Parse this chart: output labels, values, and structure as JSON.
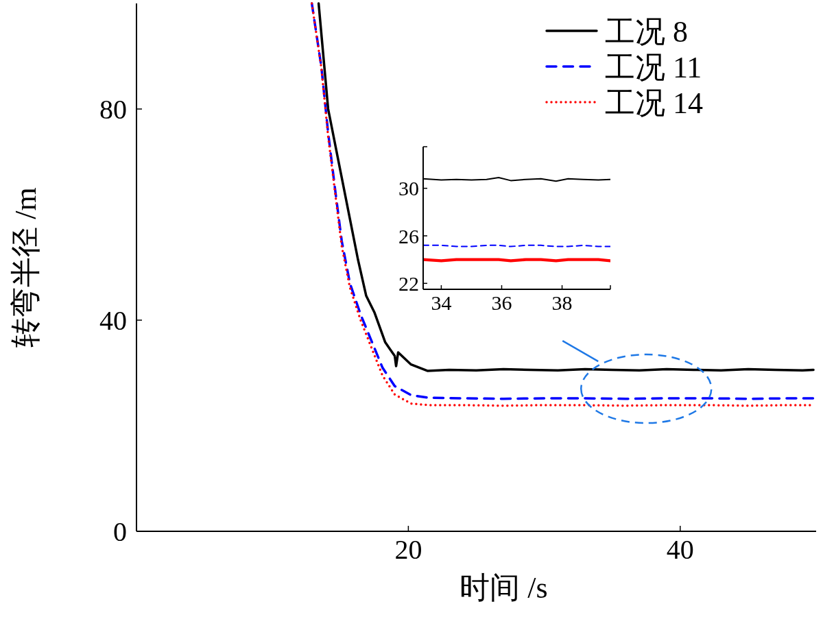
{
  "chart_data": [
    {
      "type": "line",
      "xlabel": "时间 /s",
      "ylabel": "转弯半径 /m",
      "xlim": [
        0,
        50
      ],
      "ylim": [
        0,
        100
      ],
      "xticks": [
        20,
        40
      ],
      "yticks": [
        0,
        40,
        80
      ],
      "legend": "top right",
      "series": [
        {
          "name": "工况 8",
          "color": "#000000",
          "line_style": "solid",
          "x": [
            13.4,
            14.1,
            14.9,
            15.7,
            16.3,
            16.9,
            17.5,
            18.3,
            19.0,
            19.1,
            19.25,
            20.2,
            21.4,
            23,
            25,
            27,
            29,
            31,
            33,
            35,
            37,
            39,
            41,
            43,
            45,
            47,
            49,
            49.8
          ],
          "values": [
            100,
            80,
            69.6,
            59.2,
            51.4,
            44.6,
            41.5,
            35.8,
            33.2,
            31.3,
            33.9,
            31.6,
            30.4,
            30.6,
            30.5,
            30.7,
            30.6,
            30.5,
            30.7,
            30.6,
            30.5,
            30.7,
            30.6,
            30.5,
            30.7,
            30.6,
            30.5,
            30.6
          ]
        },
        {
          "name": "工况 11",
          "color": "#0000ff",
          "line_style": "dashed",
          "x": [
            12.9,
            13.6,
            14.1,
            14.6,
            15.1,
            15.7,
            16.5,
            17.3,
            18.1,
            19.0,
            20.2,
            21.5,
            24,
            27,
            30,
            33,
            36,
            39,
            42,
            45,
            48,
            49.8
          ],
          "values": [
            100,
            88,
            75.5,
            65,
            55,
            47,
            41,
            36,
            31,
            27.5,
            25.8,
            25.3,
            25.2,
            25.1,
            25.2,
            25.2,
            25.1,
            25.2,
            25.2,
            25.1,
            25.2,
            25.2
          ]
        },
        {
          "name": "工况 14",
          "color": "#ff0000",
          "line_style": "dotted",
          "x": [
            12.9,
            13.6,
            14.1,
            14.6,
            15.1,
            15.7,
            16.5,
            17.3,
            18.1,
            19.0,
            20.2,
            21.5,
            24,
            27,
            30,
            33,
            36,
            39,
            42,
            45,
            48,
            49.8
          ],
          "values": [
            100,
            87.8,
            74.8,
            64.4,
            54,
            46.2,
            39.9,
            34.7,
            29.5,
            25.9,
            24.2,
            23.9,
            23.9,
            23.8,
            23.9,
            23.9,
            23.8,
            23.9,
            23.9,
            23.8,
            23.9,
            23.9
          ]
        }
      ]
    },
    {
      "type": "line",
      "xlim": [
        33.4,
        39.6
      ],
      "ylim": [
        21.5,
        33.5
      ],
      "xticks": [
        34,
        36,
        38
      ],
      "yticks": [
        22,
        26,
        30
      ],
      "series": [
        {
          "color": "#000000",
          "line_style": "solid",
          "x": [
            33.4,
            34,
            34.5,
            35,
            35.5,
            35.9,
            36.3,
            36.8,
            37.3,
            37.8,
            38.2,
            38.7,
            39.2,
            39.6
          ],
          "values": [
            30.8,
            30.7,
            30.75,
            30.7,
            30.75,
            30.9,
            30.65,
            30.75,
            30.8,
            30.6,
            30.8,
            30.75,
            30.7,
            30.75
          ]
        },
        {
          "color": "#0000ff",
          "line_style": "dashed",
          "x": [
            33.4,
            34,
            34.5,
            35,
            35.5,
            35.9,
            36.3,
            36.8,
            37.3,
            37.8,
            38.2,
            38.7,
            39.2,
            39.6
          ],
          "values": [
            25.2,
            25.2,
            25.1,
            25.1,
            25.2,
            25.2,
            25.1,
            25.2,
            25.2,
            25.1,
            25.1,
            25.2,
            25.1,
            25.1
          ]
        },
        {
          "color": "#ff0000",
          "line_style": "solid",
          "x": [
            33.4,
            34,
            34.5,
            35,
            35.5,
            35.9,
            36.3,
            36.8,
            37.3,
            37.8,
            38.2,
            38.7,
            39.2,
            39.6
          ],
          "values": [
            24.0,
            23.9,
            24.0,
            24.0,
            24.0,
            24.0,
            23.9,
            24.0,
            24.0,
            23.9,
            24.0,
            24.0,
            24.0,
            23.9
          ]
        }
      ]
    }
  ]
}
